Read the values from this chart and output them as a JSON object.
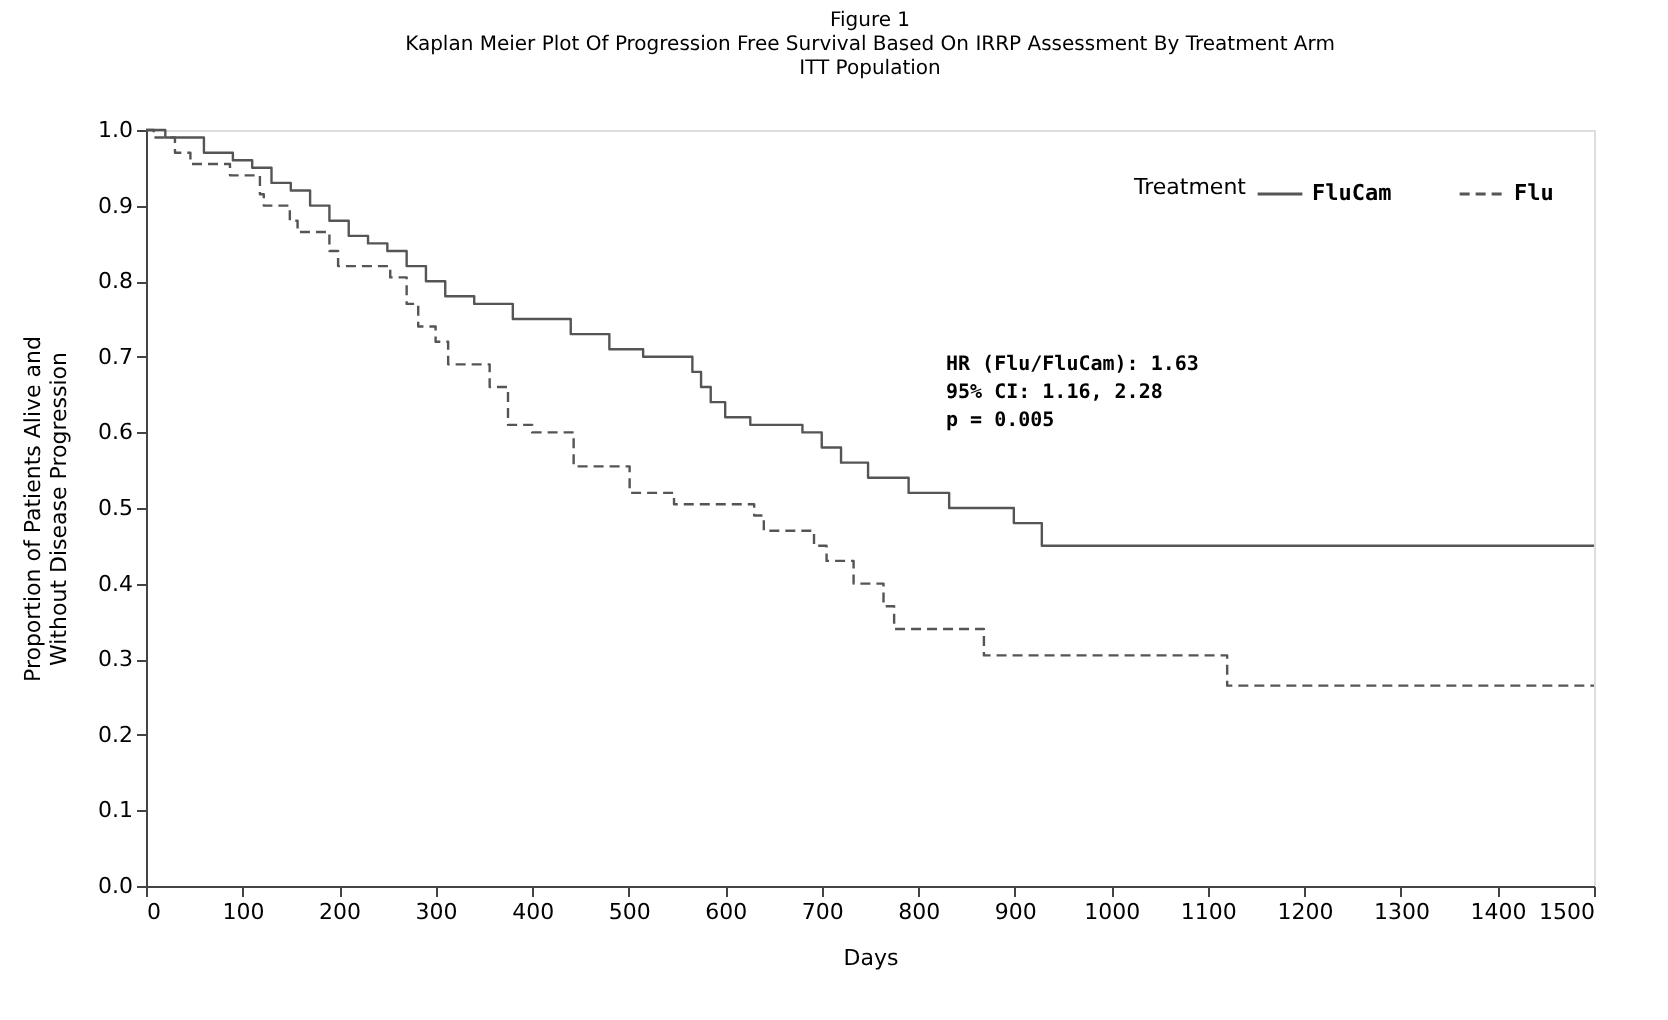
{
  "chart_data": {
    "type": "step",
    "title": [
      "Figure 1",
      "Kaplan Meier Plot Of Progression Free Survival Based On IRRP Assessment By Treatment Arm",
      "ITT Population"
    ],
    "xlabel": "Days",
    "ylabel": [
      "Proportion of Patients Alive and",
      "Without Disease Progression"
    ],
    "legend_title": "Treatment",
    "legend": "top right",
    "grid": false,
    "marker": "none",
    "xlim": [
      0,
      1500
    ],
    "xticks": [
      0,
      100,
      200,
      300,
      400,
      500,
      600,
      700,
      800,
      900,
      1000,
      1100,
      1200,
      1300,
      1400,
      1500
    ],
    "ylim": [
      0,
      1
    ],
    "yticks": [
      {
        "value": 0,
        "label": "0.0"
      },
      0.1,
      0.2,
      0.3,
      0.4,
      0.5,
      0.6,
      0.7,
      0.8,
      0.9,
      {
        "value": 1,
        "label": "1.0"
      }
    ],
    "annotations": [
      "HR (Flu/FluCam): 1.63",
      "95% CI: 1.16, 2.28",
      "p = 0.005"
    ],
    "series": [
      {
        "name": "FluCam",
        "color": "#555555",
        "line_style": "solid",
        "x": [
          0,
          20,
          60,
          90,
          110,
          130,
          150,
          170,
          190,
          210,
          230,
          250,
          270,
          290,
          310,
          340,
          380,
          440,
          480,
          515,
          566,
          575,
          585,
          600,
          626,
          680,
          700,
          720,
          748,
          790,
          832,
          899,
          928,
          1500
        ],
        "values": [
          1.0,
          0.99,
          0.97,
          0.96,
          0.95,
          0.93,
          0.92,
          0.9,
          0.88,
          0.86,
          0.85,
          0.84,
          0.82,
          0.8,
          0.78,
          0.77,
          0.75,
          0.73,
          0.71,
          0.7,
          0.68,
          0.66,
          0.64,
          0.62,
          0.61,
          0.6,
          0.58,
          0.56,
          0.54,
          0.52,
          0.5,
          0.48,
          0.45,
          0.45
        ]
      },
      {
        "name": "Flu",
        "color": "#555555",
        "line_style": "dashed",
        "x": [
          0,
          8,
          30,
          46,
          87,
          118,
          122,
          149,
          157,
          190,
          199,
          253,
          270,
          282,
          300,
          313,
          356,
          375,
          400,
          443,
          501,
          547,
          630,
          640,
          692,
          705,
          733,
          764,
          775,
          868,
          1120,
          1500
        ],
        "values": [
          1.0,
          0.99,
          0.97,
          0.955,
          0.94,
          0.915,
          0.9,
          0.88,
          0.865,
          0.84,
          0.82,
          0.805,
          0.77,
          0.74,
          0.72,
          0.69,
          0.66,
          0.61,
          0.6,
          0.555,
          0.52,
          0.505,
          0.49,
          0.47,
          0.45,
          0.43,
          0.4,
          0.37,
          0.34,
          0.305,
          0.265,
          0.265
        ]
      }
    ]
  }
}
